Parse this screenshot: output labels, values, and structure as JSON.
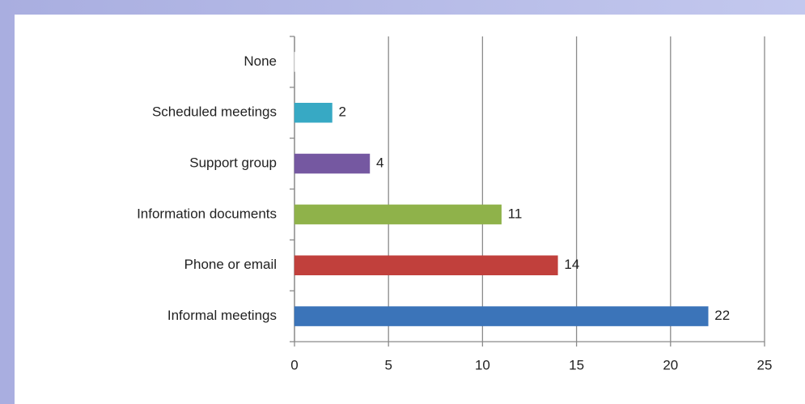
{
  "chart_data": {
    "type": "bar",
    "orientation": "horizontal",
    "categories": [
      "None",
      "Scheduled meetings",
      "Support group",
      "Information documents",
      "Phone or email",
      "Informal meetings"
    ],
    "values": [
      0,
      2,
      4,
      11,
      14,
      22
    ],
    "colors": [
      "#f2f2f2",
      "#37a9c4",
      "#7558a1",
      "#8fb24a",
      "#c1403c",
      "#3b74b9"
    ],
    "xlim": [
      0,
      25
    ],
    "xticks": [
      0,
      5,
      10,
      15,
      20,
      25
    ],
    "grid": true
  }
}
